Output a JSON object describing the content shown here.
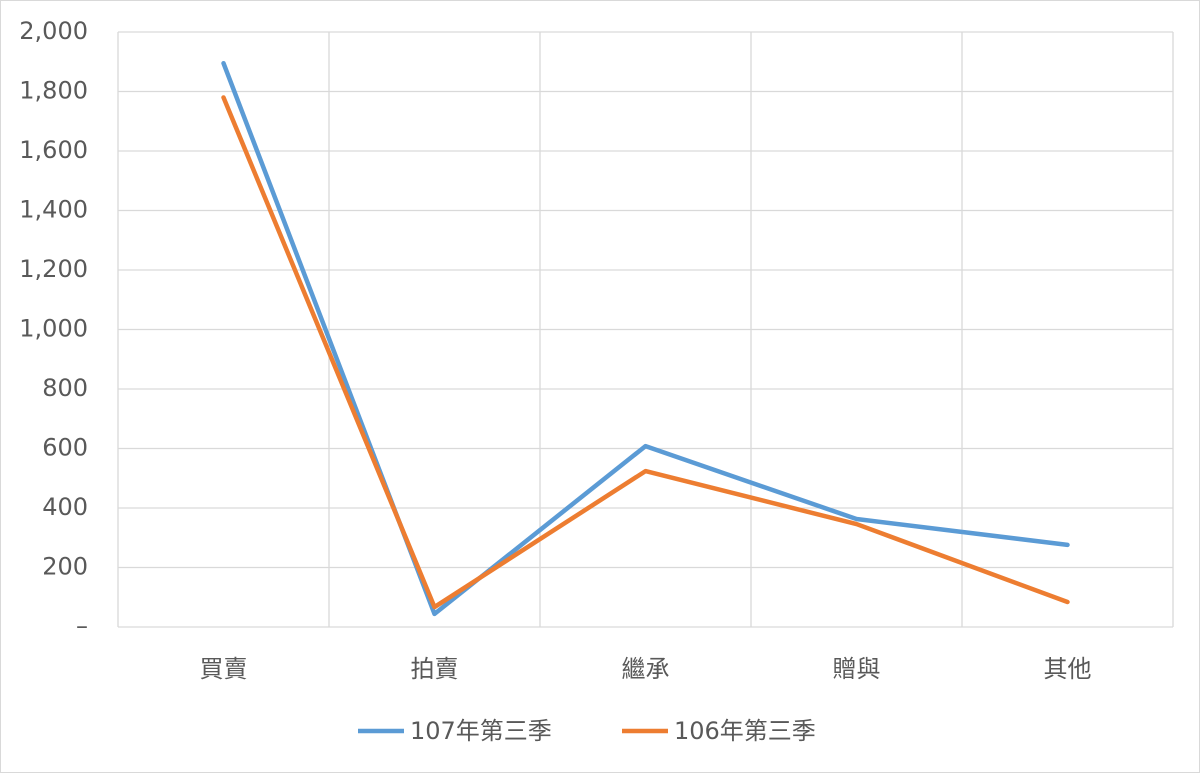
{
  "chart_data": {
    "type": "line",
    "categories": [
      "買賣",
      "拍賣",
      "繼承",
      "贈與",
      "其他"
    ],
    "series": [
      {
        "name": "107年第三季",
        "color": "#5b9bd5",
        "values": [
          1895,
          44,
          608,
          363,
          276
        ]
      },
      {
        "name": "106年第三季",
        "color": "#ed7d31",
        "values": [
          1780,
          67,
          524,
          346,
          84
        ]
      }
    ],
    "ylim": [
      0,
      2000
    ],
    "yticks": [
      {
        "value": 0,
        "label": "–"
      },
      200,
      400,
      600,
      800,
      {
        "value": 1000,
        "label": "1,000"
      },
      {
        "value": 1200,
        "label": "1,200"
      },
      {
        "value": 1400,
        "label": "1,400"
      },
      {
        "value": 1600,
        "label": "1,600"
      },
      {
        "value": 1800,
        "label": "1,800"
      },
      {
        "value": 2000,
        "label": "2,000"
      }
    ],
    "grid": true,
    "legend": "bottom"
  }
}
